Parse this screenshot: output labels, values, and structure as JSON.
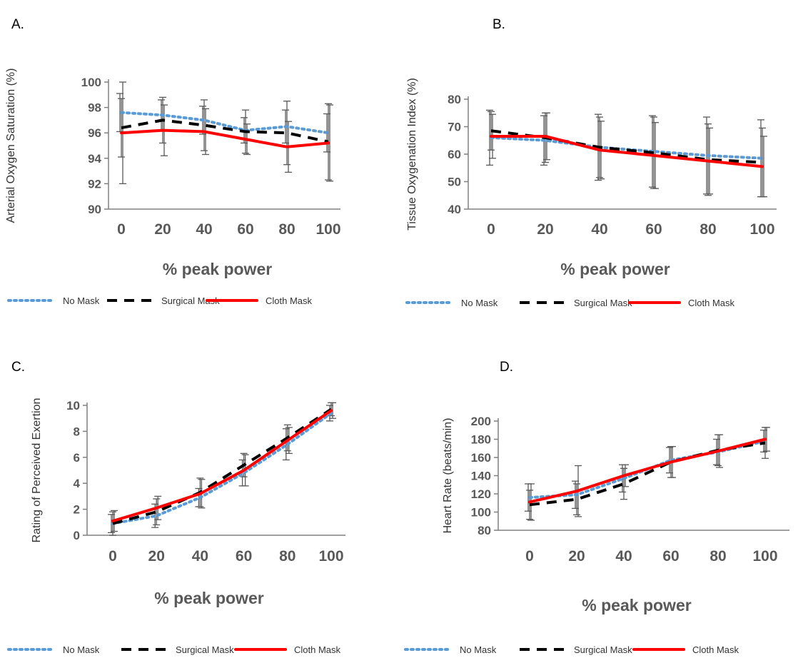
{
  "colors": {
    "no_mask": "#5b9bd5",
    "surgical_mask": "#000000",
    "cloth_mask": "#ff0000",
    "axis": "#808080",
    "error_bar": "#595959"
  },
  "chart_data": [
    {
      "panel": "A.",
      "type": "line",
      "x": [
        0,
        20,
        40,
        60,
        80,
        100
      ],
      "xlabel": "% peak power",
      "ylabel": "Arterial Oxygen Saturation (%)",
      "ylim": [
        90,
        100
      ],
      "yticks": [
        90,
        92,
        94,
        96,
        98,
        100
      ],
      "series": [
        {
          "name": "No Mask",
          "values": [
            97.6,
            97.4,
            97.0,
            96.2,
            96.5,
            96.0
          ],
          "err": [
            1.5,
            1.2,
            1.1,
            1.0,
            1.3,
            1.5
          ]
        },
        {
          "name": "Surgical Mask",
          "values": [
            96.4,
            97.0,
            96.6,
            96.1,
            96.0,
            95.3
          ],
          "err": [
            2.3,
            1.8,
            2.0,
            1.7,
            2.5,
            3.0
          ]
        },
        {
          "name": "Cloth Mask",
          "values": [
            96.0,
            96.2,
            96.1,
            95.5,
            94.9,
            95.2
          ],
          "err": [
            4.0,
            2.0,
            1.8,
            1.2,
            2.0,
            3.0
          ]
        }
      ],
      "legend": "bottom"
    },
    {
      "panel": "B.",
      "type": "line",
      "x": [
        0,
        20,
        40,
        60,
        80,
        100
      ],
      "xlabel": "% peak power",
      "ylabel": "Tissue Oxygenation Index (%)",
      "ylim": [
        40,
        80
      ],
      "yticks": [
        40,
        50,
        60,
        70,
        80
      ],
      "series": [
        {
          "name": "No Mask",
          "values": [
            66,
            65,
            62.5,
            61,
            59.5,
            58.5
          ],
          "err": [
            10,
            9,
            12,
            13,
            14,
            14
          ]
        },
        {
          "name": "Surgical Mask",
          "values": [
            68.5,
            66,
            62.5,
            60.5,
            58,
            57
          ],
          "err": [
            7,
            9,
            11,
            13,
            13,
            12.5
          ]
        },
        {
          "name": "Cloth Mask",
          "values": [
            66.5,
            66.5,
            61.5,
            59.5,
            57.5,
            55.5
          ],
          "err": [
            8,
            8.5,
            10.5,
            12,
            12,
            11
          ]
        }
      ],
      "legend": "bottom"
    },
    {
      "panel": "C.",
      "type": "line",
      "x": [
        0,
        20,
        40,
        60,
        80,
        100
      ],
      "xlabel": "% peak power",
      "ylabel": "Rating of Perceived Exertion",
      "ylim": [
        0,
        10
      ],
      "yticks": [
        0,
        2,
        4,
        6,
        8,
        10
      ],
      "series": [
        {
          "name": "No Mask",
          "values": [
            0.9,
            1.5,
            2.9,
            4.8,
            7.0,
            9.4
          ],
          "err": [
            0.7,
            0.9,
            0.7,
            1.0,
            1.2,
            0.6
          ]
        },
        {
          "name": "Surgical Mask",
          "values": [
            0.9,
            1.8,
            3.3,
            5.4,
            7.5,
            9.7
          ],
          "err": [
            0.9,
            1.0,
            1.1,
            0.9,
            1.0,
            0.5
          ]
        },
        {
          "name": "Cloth Mask",
          "values": [
            1.1,
            2.1,
            3.2,
            5.0,
            7.3,
            9.6
          ],
          "err": [
            0.8,
            0.9,
            1.1,
            1.2,
            1.0,
            0.6
          ]
        }
      ],
      "legend": "bottom"
    },
    {
      "panel": "D.",
      "type": "line",
      "x": [
        0,
        20,
        40,
        60,
        80,
        100
      ],
      "xlabel": "% peak power",
      "ylabel": "Heart Rate (beats/min)",
      "ylim": [
        80,
        200
      ],
      "yticks": [
        80,
        100,
        120,
        140,
        160,
        180,
        200
      ],
      "series": [
        {
          "name": "No Mask",
          "values": [
            116,
            119,
            137,
            157,
            166,
            178
          ],
          "err": [
            15,
            15,
            15,
            14,
            14,
            12
          ]
        },
        {
          "name": "Surgical Mask",
          "values": [
            108,
            114,
            131,
            155,
            168,
            176
          ],
          "err": [
            16,
            17,
            17,
            17,
            17,
            17
          ]
        },
        {
          "name": "Cloth Mask",
          "values": [
            111,
            123,
            140,
            155,
            167,
            180
          ],
          "err": [
            20,
            28,
            12,
            17,
            18,
            13
          ]
        }
      ],
      "legend": "bottom"
    }
  ]
}
